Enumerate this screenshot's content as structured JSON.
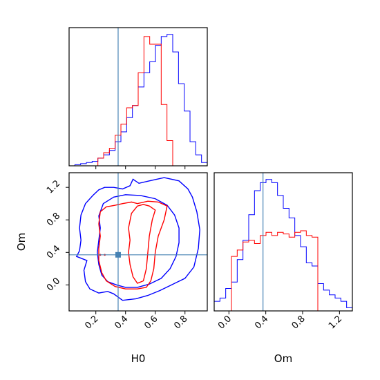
{
  "chart_data": {
    "type": "corner",
    "parameters": [
      "H0",
      "Om"
    ],
    "truths": {
      "H0": 0.35,
      "Om": 0.37
    },
    "truth_color": "#4682b4",
    "series": [
      {
        "color": "#0000ff"
      },
      {
        "color": "#ff0000"
      }
    ],
    "panels": {
      "hist_H0": {
        "xlim": [
          0.02,
          0.95
        ],
        "bin_edges": [
          0.02,
          0.0588,
          0.0975,
          0.1363,
          0.175,
          0.2138,
          0.2525,
          0.2913,
          0.33,
          0.3688,
          0.4075,
          0.4463,
          0.485,
          0.5238,
          0.5625,
          0.6013,
          0.64,
          0.6788,
          0.7175,
          0.7563,
          0.795,
          0.8338,
          0.8725,
          0.9113,
          0.95
        ],
        "blue": [
          0,
          1,
          2,
          3,
          4,
          7,
          10,
          14,
          22,
          31,
          44,
          55,
          72,
          85,
          95,
          110,
          118,
          120,
          104,
          75,
          50,
          22,
          10,
          3
        ],
        "red": [
          0,
          0,
          0,
          0,
          0,
          7,
          12,
          16,
          28,
          38,
          53,
          55,
          85,
          118,
          111,
          111,
          56,
          23,
          0,
          0,
          0,
          0,
          0,
          0
        ]
      },
      "hist_Om": {
        "xlim": [
          -0.16,
          1.34
        ],
        "xticks": [
          0.0,
          0.4,
          0.8,
          1.2
        ],
        "bin_edges": [
          -0.16,
          -0.0975,
          -0.035,
          0.0275,
          0.09,
          0.1525,
          0.215,
          0.2775,
          0.34,
          0.4025,
          0.465,
          0.5275,
          0.59,
          0.6525,
          0.715,
          0.7775,
          0.84,
          0.9025,
          0.965,
          1.0275,
          1.09,
          1.1525,
          1.215,
          1.2775,
          1.34
        ],
        "blue": [
          6,
          8,
          14,
          18,
          32,
          44,
          60,
          75,
          80,
          82,
          80,
          72,
          64,
          58,
          47,
          40,
          30,
          28,
          17,
          13,
          10,
          8,
          6,
          2
        ],
        "red": [
          0,
          0,
          0,
          34,
          38,
          43,
          44,
          42,
          47,
          49,
          47,
          49,
          48,
          46,
          49,
          50,
          47,
          46,
          0,
          0,
          0,
          0,
          0,
          0
        ]
      },
      "joint_H0_Om": {
        "xlim": [
          0.02,
          0.95
        ],
        "ylim": [
          -0.32,
          1.38
        ],
        "xticks": [
          0.2,
          0.4,
          0.6,
          0.8
        ],
        "yticks": [
          0.0,
          0.4,
          0.8,
          1.2
        ],
        "blue_contours": [
          [
            [
              0.26,
              1.2
            ],
            [
              0.22,
              1.17
            ],
            [
              0.18,
              1.1
            ],
            [
              0.13,
              1.0
            ],
            [
              0.1,
              0.86
            ],
            [
              0.09,
              0.7
            ],
            [
              0.1,
              0.55
            ],
            [
              0.09,
              0.42
            ],
            [
              0.07,
              0.35
            ],
            [
              0.14,
              0.3
            ],
            [
              0.12,
              0.18
            ],
            [
              0.13,
              0.04
            ],
            [
              0.16,
              -0.05
            ],
            [
              0.22,
              -0.1
            ],
            [
              0.28,
              -0.08
            ],
            [
              0.32,
              -0.11
            ],
            [
              0.38,
              -0.19
            ],
            [
              0.47,
              -0.17
            ],
            [
              0.55,
              -0.13
            ],
            [
              0.63,
              -0.07
            ],
            [
              0.72,
              0.01
            ],
            [
              0.8,
              0.08
            ],
            [
              0.86,
              0.22
            ],
            [
              0.89,
              0.45
            ],
            [
              0.9,
              0.68
            ],
            [
              0.88,
              0.9
            ],
            [
              0.85,
              1.08
            ],
            [
              0.82,
              1.18
            ],
            [
              0.76,
              1.28
            ],
            [
              0.66,
              1.32
            ],
            [
              0.56,
              1.28
            ],
            [
              0.49,
              1.25
            ],
            [
              0.45,
              1.3
            ],
            [
              0.43,
              1.22
            ],
            [
              0.38,
              1.18
            ],
            [
              0.32,
              1.2
            ],
            [
              0.26,
              1.2
            ]
          ],
          [
            [
              0.32,
              1.08
            ],
            [
              0.25,
              1.0
            ],
            [
              0.22,
              0.85
            ],
            [
              0.23,
              0.7
            ],
            [
              0.22,
              0.55
            ],
            [
              0.21,
              0.4
            ],
            [
              0.22,
              0.25
            ],
            [
              0.24,
              0.12
            ],
            [
              0.28,
              0.04
            ],
            [
              0.34,
              0.0
            ],
            [
              0.4,
              -0.03
            ],
            [
              0.48,
              -0.03
            ],
            [
              0.56,
              0.01
            ],
            [
              0.64,
              0.08
            ],
            [
              0.7,
              0.2
            ],
            [
              0.74,
              0.35
            ],
            [
              0.76,
              0.52
            ],
            [
              0.76,
              0.7
            ],
            [
              0.73,
              0.86
            ],
            [
              0.68,
              0.98
            ],
            [
              0.6,
              1.06
            ],
            [
              0.5,
              1.1
            ],
            [
              0.4,
              1.11
            ],
            [
              0.32,
              1.08
            ]
          ]
        ],
        "red_contours": [
          [
            [
              0.27,
              0.96
            ],
            [
              0.23,
              0.9
            ],
            [
              0.22,
              0.75
            ],
            [
              0.23,
              0.6
            ],
            [
              0.22,
              0.45
            ],
            [
              0.22,
              0.3
            ],
            [
              0.24,
              0.15
            ],
            [
              0.27,
              0.05
            ],
            [
              0.33,
              -0.02
            ],
            [
              0.4,
              -0.05
            ],
            [
              0.48,
              -0.05
            ],
            [
              0.54,
              -0.03
            ],
            [
              0.57,
              0.05
            ],
            [
              0.59,
              0.2
            ],
            [
              0.6,
              0.4
            ],
            [
              0.62,
              0.6
            ],
            [
              0.66,
              0.8
            ],
            [
              0.68,
              0.97
            ],
            [
              0.62,
              1.02
            ],
            [
              0.55,
              1.03
            ],
            [
              0.48,
              1.0
            ],
            [
              0.44,
              1.02
            ],
            [
              0.38,
              1.0
            ],
            [
              0.33,
              0.98
            ],
            [
              0.27,
              0.96
            ]
          ],
          [
            [
              0.48,
              0.97
            ],
            [
              0.44,
              0.88
            ],
            [
              0.42,
              0.7
            ],
            [
              0.43,
              0.55
            ],
            [
              0.42,
              0.4
            ],
            [
              0.43,
              0.25
            ],
            [
              0.45,
              0.1
            ],
            [
              0.48,
              0.02
            ],
            [
              0.52,
              0.05
            ],
            [
              0.54,
              0.2
            ],
            [
              0.55,
              0.4
            ],
            [
              0.56,
              0.6
            ],
            [
              0.58,
              0.8
            ],
            [
              0.6,
              0.92
            ],
            [
              0.56,
              0.97
            ],
            [
              0.52,
              0.99
            ],
            [
              0.48,
              0.97
            ]
          ]
        ],
        "red_dots": [
          [
            0.23,
            0.37
          ],
          [
            0.26,
            0.37
          ]
        ]
      }
    },
    "xlabel_left": "H0",
    "xlabel_right": "Om",
    "ylabel_joint": "Om"
  }
}
